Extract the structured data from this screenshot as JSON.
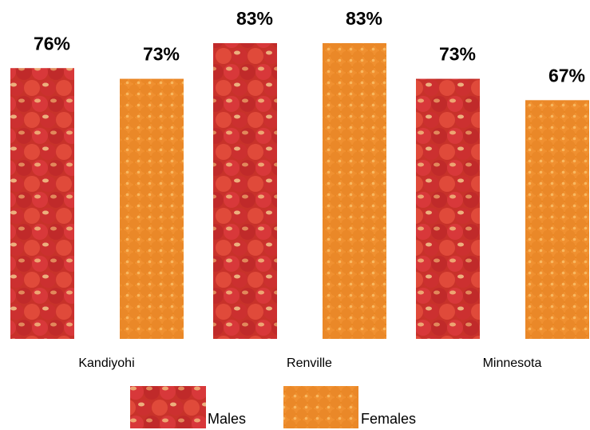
{
  "chart_data": {
    "type": "bar",
    "categories": [
      "Kandiyohi",
      "Renville",
      "Minnesota"
    ],
    "series": [
      {
        "name": "Males",
        "color": "#c8322a",
        "values": [
          76,
          83,
          73
        ],
        "value_labels": [
          "76%",
          "83%",
          "73%"
        ]
      },
      {
        "name": "Females",
        "color": "#e8841c",
        "values": [
          73,
          83,
          67
        ],
        "value_labels": [
          "73%",
          "83%",
          "67%"
        ]
      }
    ]
  }
}
